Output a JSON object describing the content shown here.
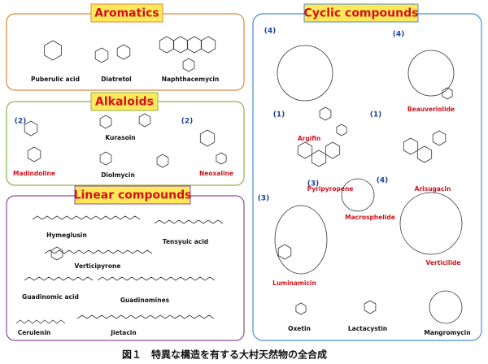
{
  "sections": [
    {
      "title": "Aromatics",
      "compounds": [
        {
          "name": "Puberulic acid"
        },
        {
          "name": "Diatretol"
        },
        {
          "name": "Naphthacemycin"
        }
      ]
    },
    {
      "title": "Alkaloids",
      "compounds": [
        {
          "name": "Madindoline",
          "label": "(2)"
        },
        {
          "name": "Kurasoin"
        },
        {
          "name": "Diolmycin"
        },
        {
          "name": "Neoxaline",
          "label": "(2)"
        }
      ]
    },
    {
      "title": "Linear compounds",
      "compounds": [
        {
          "name": "Hymeglusin"
        },
        {
          "name": "Tensyuic acid"
        },
        {
          "name": "Verticipyrone"
        },
        {
          "name": "Guadinomic acid"
        },
        {
          "name": "Guadinomines"
        },
        {
          "name": "Cerulenin"
        },
        {
          "name": "Jietacin"
        }
      ]
    },
    {
      "title": "Cyclic compounds",
      "compounds": [
        {
          "name": "Argifin",
          "label": "(4)"
        },
        {
          "name": "Beauveriolide",
          "label": "(4)"
        },
        {
          "name": "Pyripyropene",
          "label": "(1)"
        },
        {
          "name": "Arisugacin",
          "label": "(1)"
        },
        {
          "name": "Macrosphelide",
          "label": "(3)"
        },
        {
          "name": "Verticilide",
          "label": "(4)"
        },
        {
          "name": "Luminamicin",
          "label": "(3)"
        },
        {
          "name": "Oxetin"
        },
        {
          "name": "Lactacystin"
        },
        {
          "name": "Mangromycin"
        }
      ]
    }
  ],
  "caption": "図１　特異な構造を有する大村天然物の全合成"
}
